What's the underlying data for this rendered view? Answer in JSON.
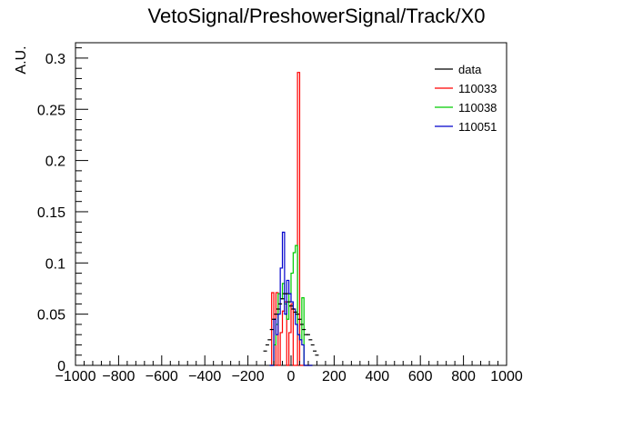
{
  "chart_data": {
    "type": "line",
    "title": "VetoSignal/PreshowerSignal/Track/X0",
    "xlabel": "",
    "ylabel": "A.U.",
    "xlim": [
      -1000,
      1000
    ],
    "ylim": [
      0,
      0.315
    ],
    "x_ticks": [
      -1000,
      -800,
      -600,
      -400,
      -200,
      0,
      200,
      400,
      600,
      800,
      1000
    ],
    "x_tick_labels": [
      "−1000",
      "−800",
      "−600",
      "−400",
      "−200",
      "0",
      "200",
      "400",
      "600",
      "800",
      "1000"
    ],
    "y_ticks": [
      0,
      0.05,
      0.1,
      0.15,
      0.2,
      0.25,
      0.3
    ],
    "y_tick_labels": [
      "0",
      "0.05",
      "0.1",
      "0.15",
      "0.2",
      "0.25",
      "0.3"
    ],
    "bin_edges": [
      -100,
      -90,
      -80,
      -70,
      -60,
      -50,
      -40,
      -30,
      -20,
      -10,
      0,
      10,
      20,
      30,
      40,
      50,
      60,
      70,
      80,
      90,
      100
    ],
    "legend_position": "top-right",
    "series": [
      {
        "name": "data",
        "color": "#000000",
        "style": "markers",
        "x": [
          -120,
          -110,
          -100,
          -90,
          -80,
          -70,
          -60,
          -50,
          -40,
          -30,
          -20,
          -10,
          0,
          10,
          20,
          30,
          40,
          50,
          60,
          70,
          80,
          90,
          100,
          110,
          120
        ],
        "values": [
          0.014,
          0.02,
          0.025,
          0.035,
          0.045,
          0.05,
          0.055,
          0.06,
          0.065,
          0.07,
          0.07,
          0.062,
          0.058,
          0.055,
          0.052,
          0.05,
          0.045,
          0.04,
          0.035,
          0.03,
          0.03,
          0.025,
          0.02,
          0.014,
          0.01
        ]
      },
      {
        "name": "110033",
        "color": "#ff0000",
        "style": "histogram",
        "values": [
          0,
          0.071,
          0,
          0.071,
          0,
          0.032,
          0.053,
          0.062,
          0,
          0.032,
          0.06,
          0,
          0,
          0.286,
          0,
          0,
          0,
          0,
          0,
          0
        ]
      },
      {
        "name": "110038",
        "color": "#00cc00",
        "style": "histogram",
        "values": [
          0,
          0,
          0.02,
          0.04,
          0.07,
          0.065,
          0.08,
          0.06,
          0.045,
          0.07,
          0.09,
          0.11,
          0.117,
          0.03,
          0.025,
          0.066,
          0,
          0,
          0,
          0
        ]
      },
      {
        "name": "110051",
        "color": "#0000cc",
        "style": "histogram",
        "values": [
          0,
          0,
          0.045,
          0.03,
          0.05,
          0.095,
          0.13,
          0.05,
          0.083,
          0.07,
          0.062,
          0.055,
          0.04,
          0.03,
          0.025,
          0.02,
          0,
          0,
          0,
          0
        ]
      }
    ]
  }
}
